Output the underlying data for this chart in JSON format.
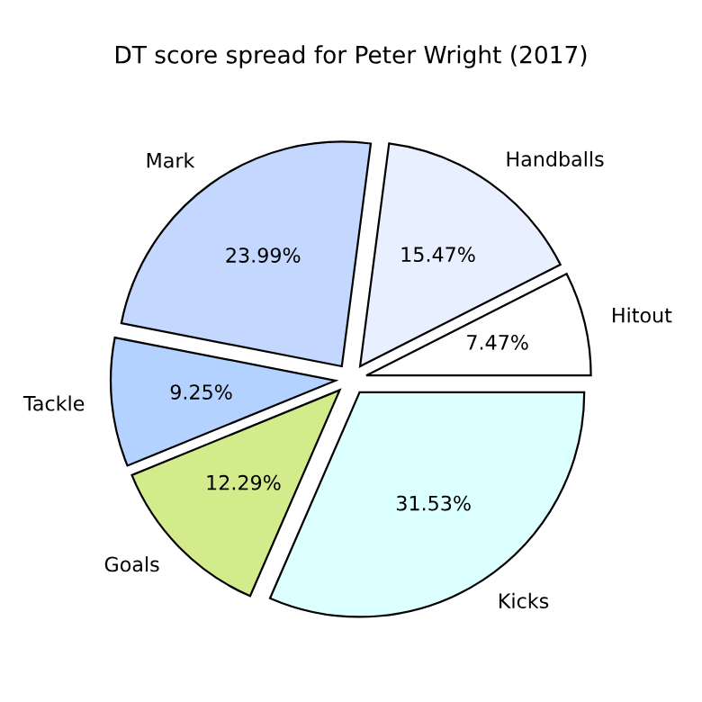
{
  "chart_data": {
    "type": "pie",
    "title": "DT score spread for Peter Wright (2017)",
    "categories": [
      "Hitout",
      "Handballs",
      "Mark",
      "Tackle",
      "Goals",
      "Kicks"
    ],
    "values": [
      7.47,
      15.47,
      23.99,
      9.25,
      12.29,
      31.53
    ],
    "value_labels": [
      "7.47%",
      "15.47%",
      "23.99%",
      "9.25%",
      "12.29%",
      "31.53%"
    ],
    "colors": [
      "#ffffff",
      "#e8f0ff",
      "#c4d8ff",
      "#b4d2ff",
      "#d2ec8c",
      "#dcffff"
    ]
  }
}
